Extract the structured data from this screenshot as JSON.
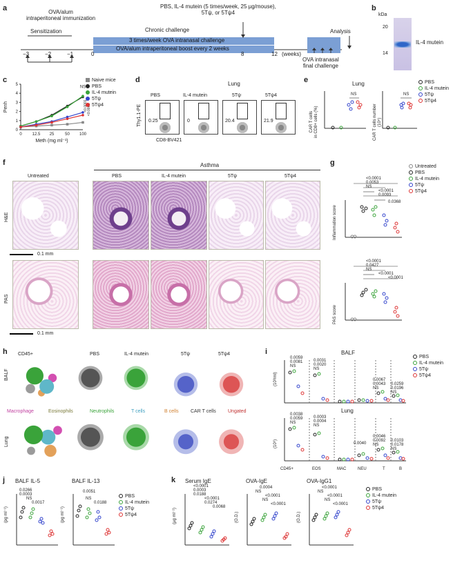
{
  "panels": {
    "a": {
      "label": "a",
      "immunization": "OVA/alum\nintraperitoneal immunization",
      "sensitization": "Sensitization",
      "treatment": "PBS, IL-4 mutein (5 times/week, 25 µg/mouse),\n5Tψ, or 5Tψ4",
      "chronic": "Chronic challenge",
      "bar1": "3 times/week OVA intranasal challenge",
      "bar2": "OVA/alum intraperitoneal boost every 2 weeks",
      "analysis": "Analysis",
      "final": "OVA intranasal\nfinal challenge",
      "weeks": "(weeks)",
      "ticks": [
        "−3",
        "−2",
        "−1",
        "0",
        "8",
        "12"
      ]
    },
    "b": {
      "label": "b",
      "kda": "kDa",
      "marker1": "20",
      "marker2": "14",
      "name": "IL-4 mutein"
    },
    "c": {
      "label": "c"
    },
    "d": {
      "label": "d",
      "title": "Lung",
      "cols": [
        "PBS",
        "IL-4 mutein",
        "5Tψ",
        "5Tψ4"
      ],
      "values": [
        "0.25",
        "0",
        "20.4",
        "21.9"
      ],
      "ylabel": "Thy1.1-PE",
      "xlabel": "CD8-BV421"
    },
    "e": {
      "label": "e",
      "title": "Lung",
      "ylabel1": "CAR T cells\nin CD8+ cells (%)",
      "ylabel2": "CAR T cells number\n(10⁴)",
      "ns": "NS",
      "legend": [
        "PBS",
        "IL-4 mutein",
        "5Tψ",
        "5Tψ4"
      ]
    },
    "f": {
      "label": "f",
      "asthma": "Asthma",
      "cols": [
        "Untreated",
        "PBS",
        "IL-4 mutein",
        "5Tψ",
        "5Tψ4"
      ],
      "rows": [
        "H&E",
        "PAS"
      ],
      "scale": "0.1 mm"
    },
    "g": {
      "label": "g",
      "legend": [
        "Untreated",
        "PBS",
        "IL-4 mutein",
        "5Tψ",
        "5Tψ4"
      ],
      "infl_ylabel": "Inflammation score",
      "pas_ylabel": "PAS score",
      "infl_p": [
        "<0.0001",
        "0.0053",
        "NS",
        "<0.0001",
        "0.0093",
        "0.0368"
      ],
      "pas_p": [
        "<0.0001",
        "0.0427",
        "NS",
        "<0.0001",
        "<0.0001"
      ]
    },
    "h": {
      "label": "h",
      "rows": [
        "BALF",
        "Lung"
      ],
      "cols": [
        "CD45+",
        "PBS",
        "IL-4 mutein",
        "5Tψ",
        "5Tψ4"
      ],
      "celltypes": [
        "Macrophage",
        "Eosinophils",
        "Neutrophils",
        "T cells",
        "B cells",
        "CAR T cells",
        "Ungated"
      ]
    },
    "i": {
      "label": "i",
      "balf_title": "BALF",
      "lung_title": "Lung",
      "ylabel_balf": "(10³/ml)",
      "ylabel_lung": "(10⁶)",
      "cats": [
        "CD45+",
        "EOS",
        "MAC",
        "NEU",
        "T",
        "B"
      ],
      "legend": [
        "PBS",
        "IL-4 mutein",
        "5Tψ",
        "5Tψ4"
      ],
      "balf_p": [
        "0.0059",
        "0.0081",
        "NS",
        "0.0031",
        "0.0020",
        "NS",
        "0.0067",
        "0.0043",
        "NS",
        "0.0259",
        "0.0196",
        "NS"
      ],
      "lung_p": [
        "0.0038",
        "0.0059",
        "NS",
        "0.0003",
        "0.0004",
        "NS",
        "0.0040",
        "0.0046",
        "0.0092",
        "NS",
        "0.0103",
        "0.0178",
        "NS"
      ]
    },
    "j": {
      "label": "j",
      "t1": "BALF IL-5",
      "t2": "BALF IL-13",
      "ylabel": "(pg ml⁻¹)",
      "p1": [
        "0.0266",
        "0.0003",
        "NS",
        "0.0017"
      ],
      "p2": [
        "0.0051",
        "NS",
        "0.0188"
      ],
      "legend": [
        "PBS",
        "IL-4 mutein",
        "5Tψ",
        "5Tψ4"
      ]
    },
    "k": {
      "label": "k",
      "t1": "Serum IgE",
      "t2": "OVA-IgE",
      "t3": "OVA-IgG1",
      "y1": "(µg ml⁻¹)",
      "y2": "(O.D.)",
      "y3": "(O.D.)",
      "p1": [
        "<0.0001",
        "0.0003",
        "0.0188",
        "<0.0001",
        "0.0274",
        "0.0068"
      ],
      "p2": [
        "0.0004",
        "NS",
        "<0.0001",
        "NS",
        "<0.0001"
      ],
      "p3": [
        "<0.0001",
        "NS",
        "<0.0001",
        "NS",
        "<0.0001"
      ],
      "legend": [
        "PBS",
        "IL-4 mutein",
        "5Tψ",
        "5Tψ4"
      ]
    }
  },
  "colors": {
    "pbs": "#222222",
    "mutein": "#3aa33a",
    "t5": "#3344cc",
    "t54": "#dd3333",
    "naive": "#888888",
    "timeline": "#7b9fd4"
  },
  "chart_data": [
    {
      "type": "line",
      "title": "",
      "xlabel": "Meth (mg ml⁻¹)",
      "ylabel": "Penh",
      "x": [
        "0",
        "12.5",
        "25",
        "50",
        "100"
      ],
      "ylim": [
        0,
        5
      ],
      "yticks": [
        "0",
        "1",
        "2",
        "3",
        "4",
        "5"
      ],
      "annotations": [
        "NS",
        "<0.0001",
        "<0.0001"
      ],
      "series": [
        {
          "name": "Naive mice",
          "values": [
            0.3,
            0.4,
            0.5,
            0.6,
            0.8
          ]
        },
        {
          "name": "PBS",
          "values": [
            0.4,
            0.9,
            1.6,
            2.6,
            3.6
          ]
        },
        {
          "name": "IL-4 mutein",
          "values": [
            0.4,
            0.9,
            1.5,
            2.5,
            3.7
          ]
        },
        {
          "name": "5Tψ",
          "values": [
            0.3,
            0.6,
            0.9,
            1.4,
            1.9
          ]
        },
        {
          "name": "5Tψ4",
          "values": [
            0.3,
            0.5,
            0.8,
            1.2,
            1.6
          ]
        }
      ]
    }
  ]
}
